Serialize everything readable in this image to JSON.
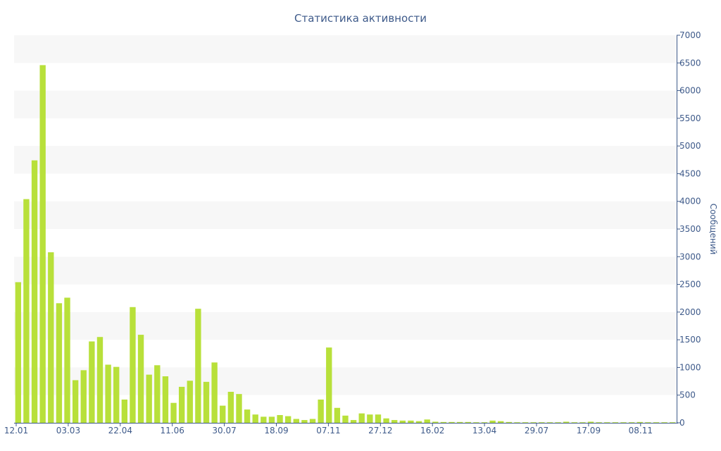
{
  "chart_data": {
    "type": "bar",
    "title": "Статистика активности",
    "xlabel": "",
    "ylabel": "Сообщений",
    "y_axis_side": "right",
    "ylim": [
      0,
      7000
    ],
    "yticks": [
      0,
      500,
      1000,
      1500,
      2000,
      2500,
      3000,
      3500,
      4000,
      4500,
      5000,
      5500,
      6000,
      6500,
      7000
    ],
    "grid": "alternating horizontal bands",
    "bar_color": "#b8e03a",
    "band_color": "#f7f7f7",
    "text_color": "#3e5a8a",
    "axis_color": "#3e5a8a",
    "x_tick_labels": [
      "12.01",
      "03.03",
      "22.04",
      "11.06",
      "30.07",
      "18.09",
      "07.11",
      "27.12",
      "16.02",
      "13.04",
      "29.07",
      "17.09",
      "08.11"
    ],
    "values": [
      2540,
      4040,
      4740,
      6460,
      3080,
      2160,
      2260,
      770,
      950,
      1470,
      1550,
      1050,
      1010,
      420,
      2090,
      1590,
      870,
      1040,
      840,
      360,
      650,
      760,
      2060,
      740,
      1090,
      310,
      560,
      520,
      240,
      150,
      110,
      110,
      140,
      120,
      70,
      50,
      70,
      420,
      1360,
      270,
      130,
      50,
      170,
      150,
      150,
      80,
      50,
      40,
      40,
      30,
      60,
      20,
      15,
      15,
      15,
      15,
      10,
      10,
      40,
      30,
      15,
      10,
      10,
      10,
      10,
      10,
      10,
      20,
      10,
      10,
      20,
      10,
      10,
      10,
      10,
      10,
      15,
      10,
      10,
      10,
      10
    ]
  }
}
